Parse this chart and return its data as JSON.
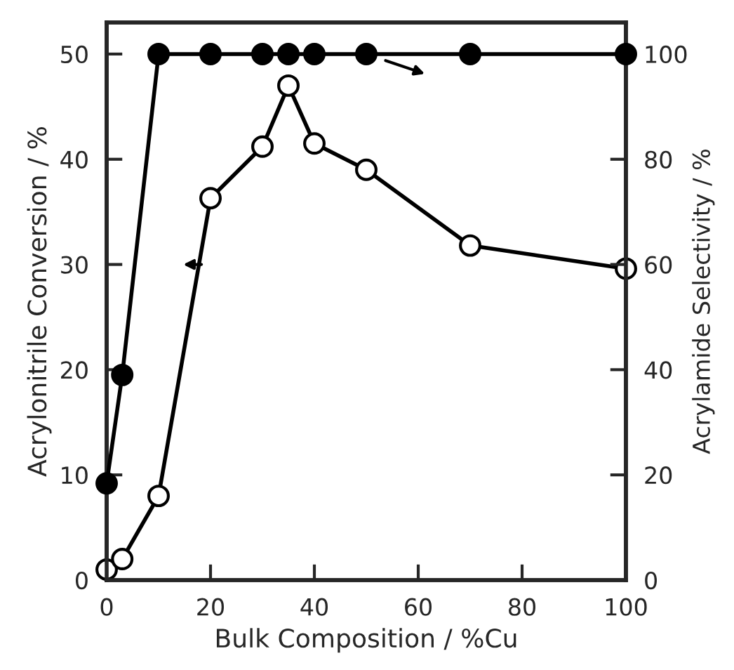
{
  "chart_data": {
    "type": "line",
    "xlabel": "Bulk Composition / %Cu",
    "ylabel": "Acrylonitrile Conversion / %",
    "y2label": "Acrylamide Selectivity / %",
    "series": [
      {
        "color": "#ffffff",
        "x": [
          0,
          3,
          10,
          20,
          30,
          35,
          40,
          50,
          70,
          100
        ],
        "values": [
          1,
          2,
          8,
          36.3,
          41.2,
          47,
          41.5,
          39,
          31.8,
          29.6
        ]
      },
      {
        "color": "#000000",
        "axis": "y2",
        "x": [
          0,
          3,
          10,
          20,
          30,
          35,
          40,
          50,
          70,
          100
        ],
        "values": [
          18.4,
          39,
          100,
          100,
          100,
          100,
          100,
          100,
          100,
          100
        ]
      }
    ],
    "xlim": [
      0,
      100
    ],
    "xticks": [
      0,
      20,
      40,
      60,
      80,
      100
    ],
    "ylim": [
      0,
      53
    ],
    "yticks": [
      0,
      10,
      20,
      30,
      40,
      50
    ],
    "y2lim": [
      0,
      106
    ],
    "y2ticks": [
      0,
      20,
      40,
      60,
      80,
      100
    ],
    "marker": "circle",
    "line_style": "solid",
    "grid": false,
    "legend": false
  }
}
